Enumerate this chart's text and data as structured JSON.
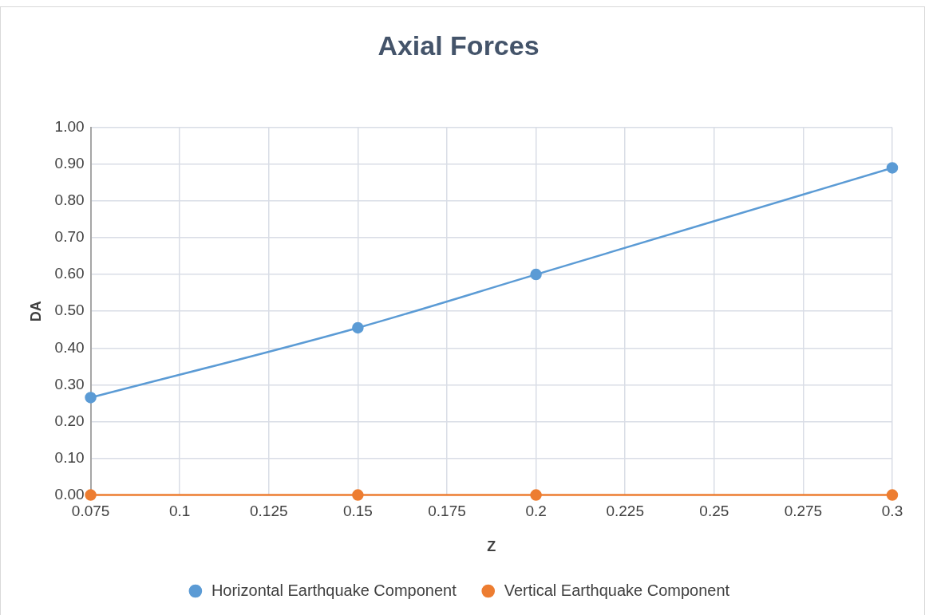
{
  "chart_data": {
    "type": "line",
    "title": "Axial Forces",
    "xlabel": "Z",
    "ylabel": "DA",
    "x": [
      0.075,
      0.15,
      0.2,
      0.3
    ],
    "series": [
      {
        "name": "Horizontal Earthquake Component",
        "color": "#5b9bd5",
        "values": [
          0.265,
          0.455,
          0.6,
          0.89
        ]
      },
      {
        "name": "Vertical Earthquake Component",
        "color": "#ed7d31",
        "values": [
          0,
          0,
          0,
          0
        ]
      }
    ],
    "xlim": [
      0.075,
      0.3
    ],
    "xticks": [
      0.075,
      0.1,
      0.125,
      0.15,
      0.175,
      0.2,
      0.225,
      0.25,
      0.275,
      0.3
    ],
    "ylim": [
      0,
      1
    ],
    "yticks": [
      {
        "value": 0,
        "label": "0.00"
      },
      {
        "value": 0.1,
        "label": "0.10"
      },
      {
        "value": 0.2,
        "label": "0.20"
      },
      {
        "value": 0.3,
        "label": "0.30"
      },
      {
        "value": 0.4,
        "label": "0.40"
      },
      {
        "value": 0.5,
        "label": "0.50"
      },
      {
        "value": 0.6,
        "label": "0.60"
      },
      {
        "value": 0.7,
        "label": "0.70"
      },
      {
        "value": 0.8,
        "label": "0.80"
      },
      {
        "value": 0.9,
        "label": "0.90"
      },
      {
        "value": 1,
        "label": "1.00"
      }
    ],
    "grid": true,
    "legend": "bottom",
    "marker": "circle",
    "line_style": "solid"
  }
}
